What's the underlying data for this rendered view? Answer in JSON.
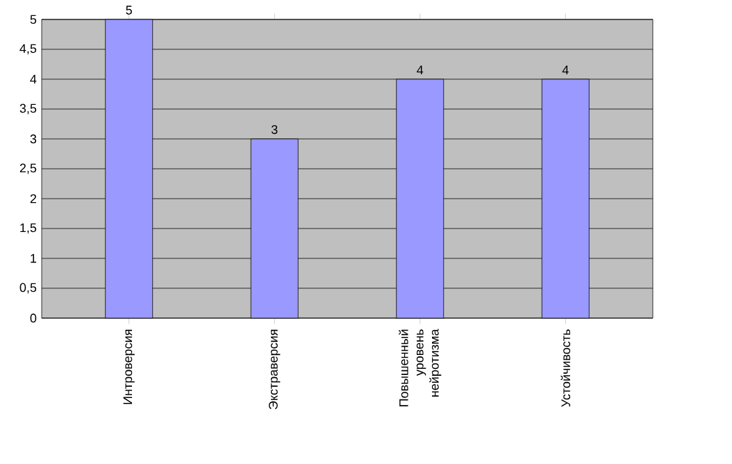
{
  "chart_data": {
    "type": "bar",
    "categories": [
      "Интроверсия",
      "Экстраверсия",
      "Повышенный уровень нейротизма",
      "Устойчивость"
    ],
    "values": [
      5,
      3,
      4,
      4
    ],
    "color": "#9999ff",
    "ylim": [
      0,
      5
    ],
    "yticks": [
      0,
      {
        "value": 0.5,
        "label": "0,5"
      },
      1,
      {
        "value": 1.5,
        "label": "1,5"
      },
      2,
      {
        "value": 2.5,
        "label": "2,5"
      },
      3,
      {
        "value": 3.5,
        "label": "3,5"
      },
      4,
      {
        "value": 4.5,
        "label": "4,5"
      },
      5
    ],
    "grid": "y",
    "data_labels": true
  }
}
